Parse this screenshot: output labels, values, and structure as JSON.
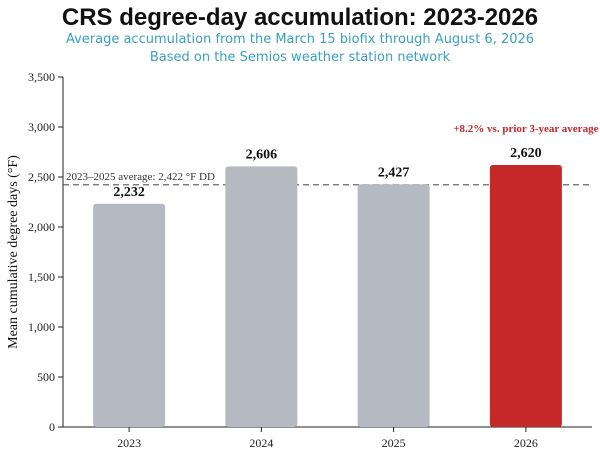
{
  "chart_data": {
    "type": "bar",
    "title": "CRS degree-day accumulation: 2023-2026",
    "subtitle": [
      "Average accumulation from the March 15 biofix through August 6, 2026",
      "Based on the Semios weather station network"
    ],
    "categories": [
      "2023",
      "2024",
      "2025",
      "2026"
    ],
    "values": [
      2232,
      2606,
      2427,
      2620
    ],
    "value_labels": [
      "2,232",
      "2,606",
      "2,427",
      "2,620"
    ],
    "bar_colors": [
      "#b5bac2",
      "#b5bac2",
      "#b5bac2",
      "#c62828"
    ],
    "xlabel": "",
    "ylabel": "Mean cumulative degree days (°F)",
    "ylim": [
      0,
      3500
    ],
    "yticks": [
      0,
      500,
      1000,
      1500,
      2000,
      2500,
      3000,
      3500
    ],
    "ytick_labels": [
      "0",
      "500",
      "1,000",
      "1,500",
      "2,000",
      "2,500",
      "3,000",
      "3,500"
    ],
    "reference_line": {
      "value": 2422,
      "label": "2023–2025 average: 2,422 °F DD",
      "style": "dashed"
    },
    "annotation": {
      "text": "+8.2% vs. prior 3-year average",
      "category": "2026",
      "color": "#c62828"
    },
    "grid": false
  }
}
